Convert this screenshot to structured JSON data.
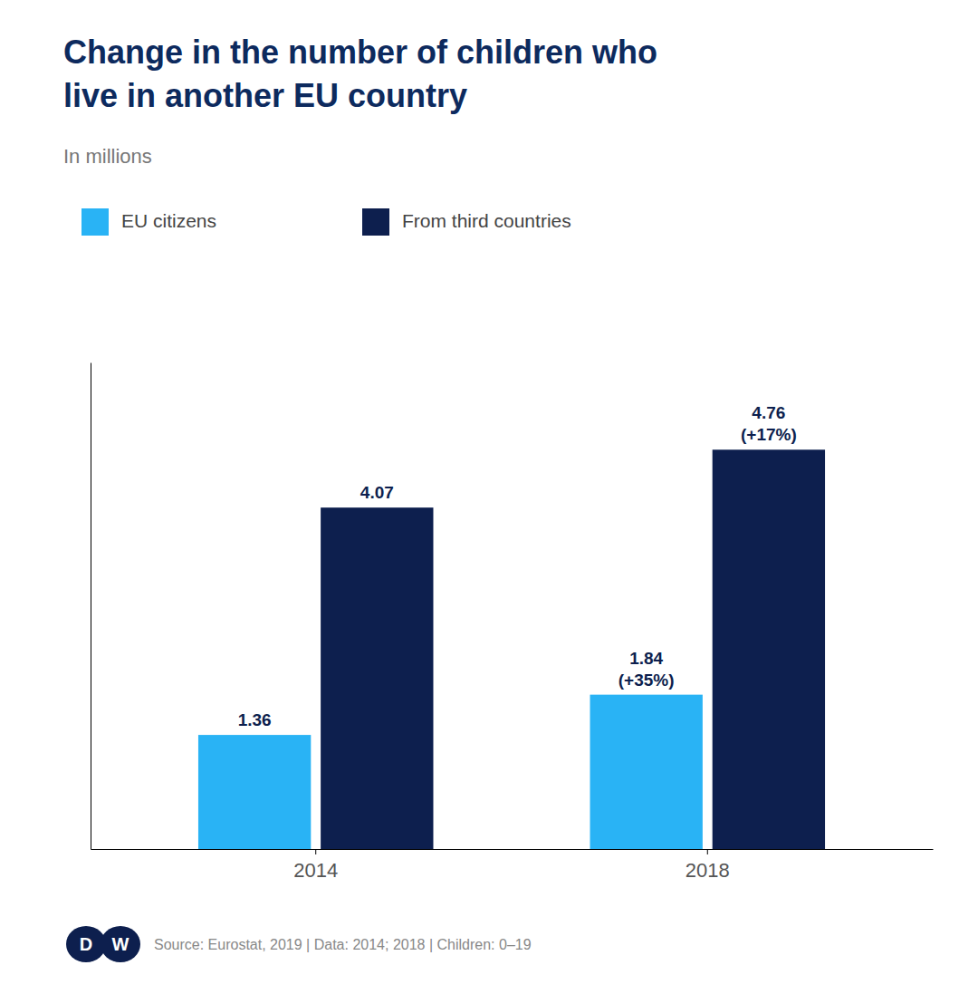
{
  "chart_data": {
    "type": "bar",
    "title": [
      "Change in the number of children who",
      "live in another EU country"
    ],
    "subtitle": "In millions",
    "categories": [
      "2014",
      "2018"
    ],
    "series": [
      {
        "name": "EU citizens",
        "color": "#29b3f5",
        "values": [
          1.36,
          1.84
        ],
        "value_labels": [
          "1.36",
          "1.84\n(+35%)"
        ]
      },
      {
        "name": "From third countries",
        "color": "#0d1f4e",
        "values": [
          4.07,
          4.76
        ],
        "value_labels": [
          "4.07",
          "4.76\n(+17%)"
        ]
      }
    ],
    "ylim": [
      0,
      5.8
    ],
    "grid": false,
    "legend": "top-left",
    "data_labels": true,
    "tick_labels": "x",
    "logo": [
      "D",
      "W"
    ],
    "source": "Source: Eurostat, 2019  |  Data: 2014; 2018 | Children: 0–19"
  }
}
